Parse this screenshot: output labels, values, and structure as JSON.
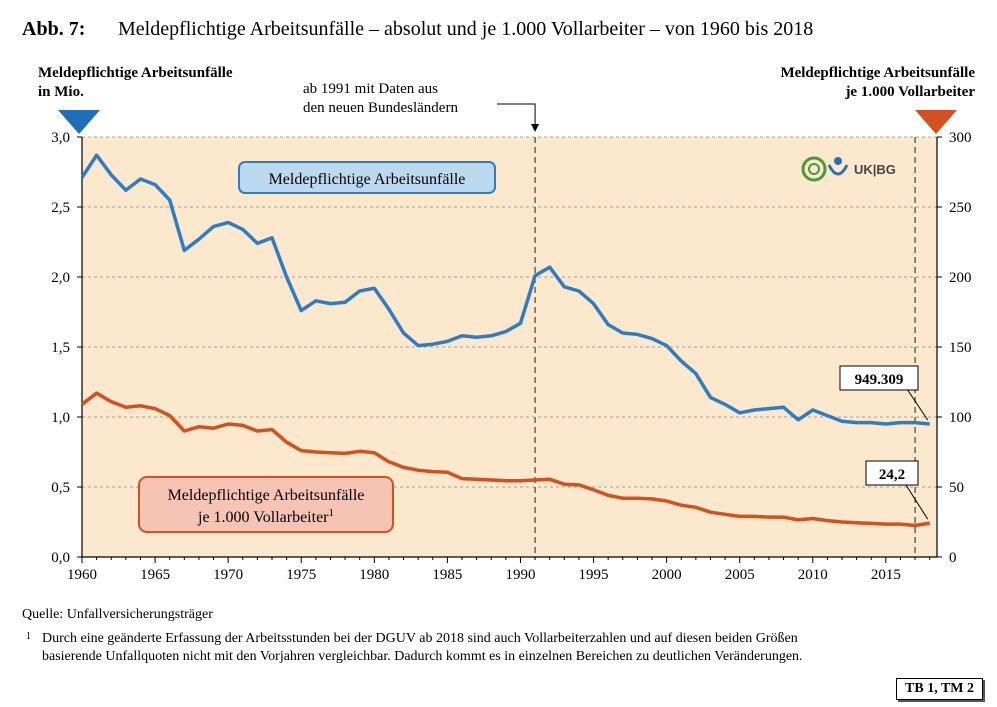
{
  "figure": {
    "number": "Abb. 7:",
    "title": "Meldepflichtige Arbeitsunfälle – absolut und je 1.000 Vollarbeiter – von 1960 bis 2018"
  },
  "axes": {
    "left_title_line1": "Meldepflichtige Arbeitsunfälle",
    "left_title_line2": "in Mio.",
    "right_title_line1": "Meldepflichtige Arbeitsunfälle",
    "right_title_line2": "je 1.000 Vollarbeiter"
  },
  "annotation": {
    "line1": "ab 1991 mit Daten aus",
    "line2": "den neuen Bundesländern",
    "year": 1991,
    "break_year": 2017
  },
  "logo": {
    "text": "UK|BG",
    "colors": [
      "#4a9a3a",
      "#2a6fb5"
    ]
  },
  "footer": {
    "source": "Quelle: Unfallversicherungsträger",
    "footnote_mark": "1",
    "footnote_line1": "Durch eine geänderte Erfassung der Arbeitsstunden bei der DGUV ab 2018 sind auch Vollarbeiterzahlen und auf diesen beiden Größen",
    "footnote_line2": "basierende Unfallquoten nicht mit den Vorjahren vergleichbar. Dadurch kommt es in einzelnen Bereichen zu deutlichen Veränderungen."
  },
  "tag": "TB 1, TM 2",
  "chart_data": {
    "type": "line",
    "x": [
      1960,
      1961,
      1962,
      1963,
      1964,
      1965,
      1966,
      1967,
      1968,
      1969,
      1970,
      1971,
      1972,
      1973,
      1974,
      1975,
      1976,
      1977,
      1978,
      1979,
      1980,
      1981,
      1982,
      1983,
      1984,
      1985,
      1986,
      1987,
      1988,
      1989,
      1990,
      1991,
      1992,
      1993,
      1994,
      1995,
      1996,
      1997,
      1998,
      1999,
      2000,
      2001,
      2002,
      2003,
      2004,
      2005,
      2006,
      2007,
      2008,
      2009,
      2010,
      2011,
      2012,
      2013,
      2014,
      2015,
      2016,
      2017,
      2018
    ],
    "xlim": [
      1960,
      2018.5
    ],
    "x_ticks": [
      1960,
      1965,
      1970,
      1975,
      1980,
      1985,
      1990,
      1995,
      2000,
      2005,
      2010,
      2015
    ],
    "y_left": {
      "lim": [
        0,
        3.0
      ],
      "ticks": [
        "0,0",
        "0,5",
        "1,0",
        "1,5",
        "2,0",
        "2,5",
        "3,0"
      ],
      "tick_values": [
        0,
        0.5,
        1.0,
        1.5,
        2.0,
        2.5,
        3.0
      ]
    },
    "y_right": {
      "lim": [
        0,
        300
      ],
      "ticks": [
        "0",
        "50",
        "100",
        "150",
        "200",
        "250",
        "300"
      ],
      "tick_values": [
        0,
        50,
        100,
        150,
        200,
        250,
        300
      ]
    },
    "grid": "horizontal-dashed",
    "background": "#fbe8cd",
    "series": [
      {
        "name": "Meldepflichtige Arbeitsunfälle",
        "axis": "left",
        "color": "#2e7cc4",
        "label_bg": "#bcd9f0",
        "values": [
          2.71,
          2.87,
          2.73,
          2.62,
          2.7,
          2.66,
          2.55,
          2.19,
          2.27,
          2.36,
          2.39,
          2.34,
          2.24,
          2.28,
          2.0,
          1.76,
          1.83,
          1.81,
          1.82,
          1.9,
          1.92,
          1.77,
          1.6,
          1.51,
          1.52,
          1.54,
          1.58,
          1.57,
          1.58,
          1.61,
          1.67,
          2.01,
          2.07,
          1.93,
          1.9,
          1.81,
          1.66,
          1.6,
          1.59,
          1.56,
          1.51,
          1.4,
          1.31,
          1.14,
          1.09,
          1.03,
          1.05,
          1.06,
          1.07,
          0.98,
          1.05,
          1.01,
          0.97,
          0.96,
          0.96,
          0.95,
          0.96,
          0.96,
          0.95
        ],
        "end_label": "949.309"
      },
      {
        "name": "Meldepflichtige Arbeitsunfälle je 1.000 Vollarbeiter",
        "label_line1": "Meldepflichtige Arbeitsunfälle",
        "label_line2": "je 1.000 Vollarbeiter",
        "label_sup": "1",
        "axis": "right",
        "color": "#d4501e",
        "label_bg": "#f6c4b4",
        "values": [
          109,
          117,
          111,
          107,
          108,
          106,
          101,
          90,
          93,
          92,
          95,
          94,
          90,
          91,
          82,
          76,
          75,
          74.5,
          74,
          75.5,
          74.5,
          68,
          64,
          62,
          61,
          60.5,
          56,
          55.5,
          55,
          54.5,
          54.5,
          55,
          55.5,
          52,
          51.5,
          48,
          44,
          42,
          42,
          41.5,
          40,
          37,
          35.5,
          32,
          30.5,
          29,
          29,
          28.5,
          28.5,
          26.5,
          27.5,
          26,
          25,
          24.5,
          24,
          23.5,
          23.5,
          22.5,
          24.2
        ],
        "end_label": "24,2"
      }
    ]
  }
}
